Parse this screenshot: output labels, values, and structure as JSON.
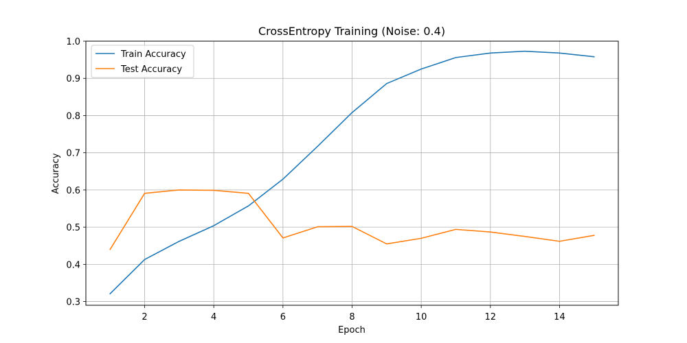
{
  "chart_data": {
    "type": "line",
    "title": "CrossEntropy Training (Noise: 0.4)",
    "xlabel": "Epoch",
    "ylabel": "Accuracy",
    "x": [
      1,
      2,
      3,
      4,
      5,
      6,
      7,
      8,
      9,
      10,
      11,
      12,
      13,
      14,
      15
    ],
    "xlim": [
      0.3,
      15.7
    ],
    "ylim": [
      0.29,
      1.0
    ],
    "xticks": [
      2,
      4,
      6,
      8,
      10,
      12,
      14
    ],
    "yticks": [
      0.3,
      0.4,
      0.5,
      0.6,
      0.7,
      0.8,
      0.9,
      1.0
    ],
    "xtick_labels": [
      "2",
      "4",
      "6",
      "8",
      "10",
      "12",
      "14"
    ],
    "ytick_labels": [
      "0.3",
      "0.4",
      "0.5",
      "0.6",
      "0.7",
      "0.8",
      "0.9",
      "1.0"
    ],
    "grid": true,
    "legend_position": "top-left",
    "series": [
      {
        "name": "Train Accuracy",
        "color": "#1f77b4",
        "values": [
          0.321,
          0.413,
          0.462,
          0.504,
          0.557,
          0.629,
          0.717,
          0.808,
          0.886,
          0.925,
          0.956,
          0.968,
          0.973,
          0.968,
          0.958
        ]
      },
      {
        "name": "Test Accuracy",
        "color": "#ff7f0e",
        "values": [
          0.44,
          0.591,
          0.6,
          0.599,
          0.591,
          0.471,
          0.501,
          0.502,
          0.455,
          0.47,
          0.494,
          0.487,
          0.475,
          0.462,
          0.478
        ]
      }
    ]
  }
}
